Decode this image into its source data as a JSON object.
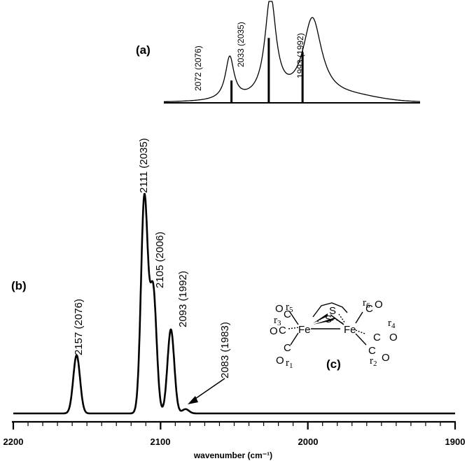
{
  "chart_data": [
    {
      "type": "line",
      "panel_label": "(a)",
      "description_kind": "experimental spectrum with stick markers",
      "peaks": [
        {
          "x": 2072,
          "height": 0.42,
          "label": "2072 (2076)",
          "stick": 0.22
        },
        {
          "x": 2033,
          "height": 1.0,
          "label": "2033 (2035)",
          "stick": 0.64
        },
        {
          "x": 1993,
          "height": 0.8,
          "label": "1993 (1992)",
          "stick": 0.5
        }
      ],
      "xlim": [
        2135,
        1890
      ],
      "ylim": [
        0,
        1.05
      ]
    },
    {
      "type": "line",
      "panel_label": "(b)",
      "xlabel": "wavenumber (cm⁻¹)",
      "xlim": [
        2200,
        1900
      ],
      "ylim": [
        0,
        1.05
      ],
      "x_ticks": [
        2200,
        2100,
        2000,
        1900
      ],
      "peaks": [
        {
          "x": 2157,
          "height": 0.27,
          "label": "2157 (2076)"
        },
        {
          "x": 2111,
          "height": 1.0,
          "label": "2111 (2035)"
        },
        {
          "x": 2105,
          "height": 0.57,
          "label": "2105 (2006)"
        },
        {
          "x": 2093,
          "height": 0.39,
          "label": "2093 (1992)"
        },
        {
          "x": 2083,
          "height": 0.02,
          "label": "2083 (1983)"
        }
      ]
    }
  ],
  "structure": {
    "panel_label": "(c)",
    "atoms": {
      "fe": "Fe",
      "s": "S",
      "c": "C",
      "o": "O",
      "r": "r"
    },
    "indices": [
      "1",
      "2",
      "3",
      "4",
      "5",
      "6"
    ]
  }
}
